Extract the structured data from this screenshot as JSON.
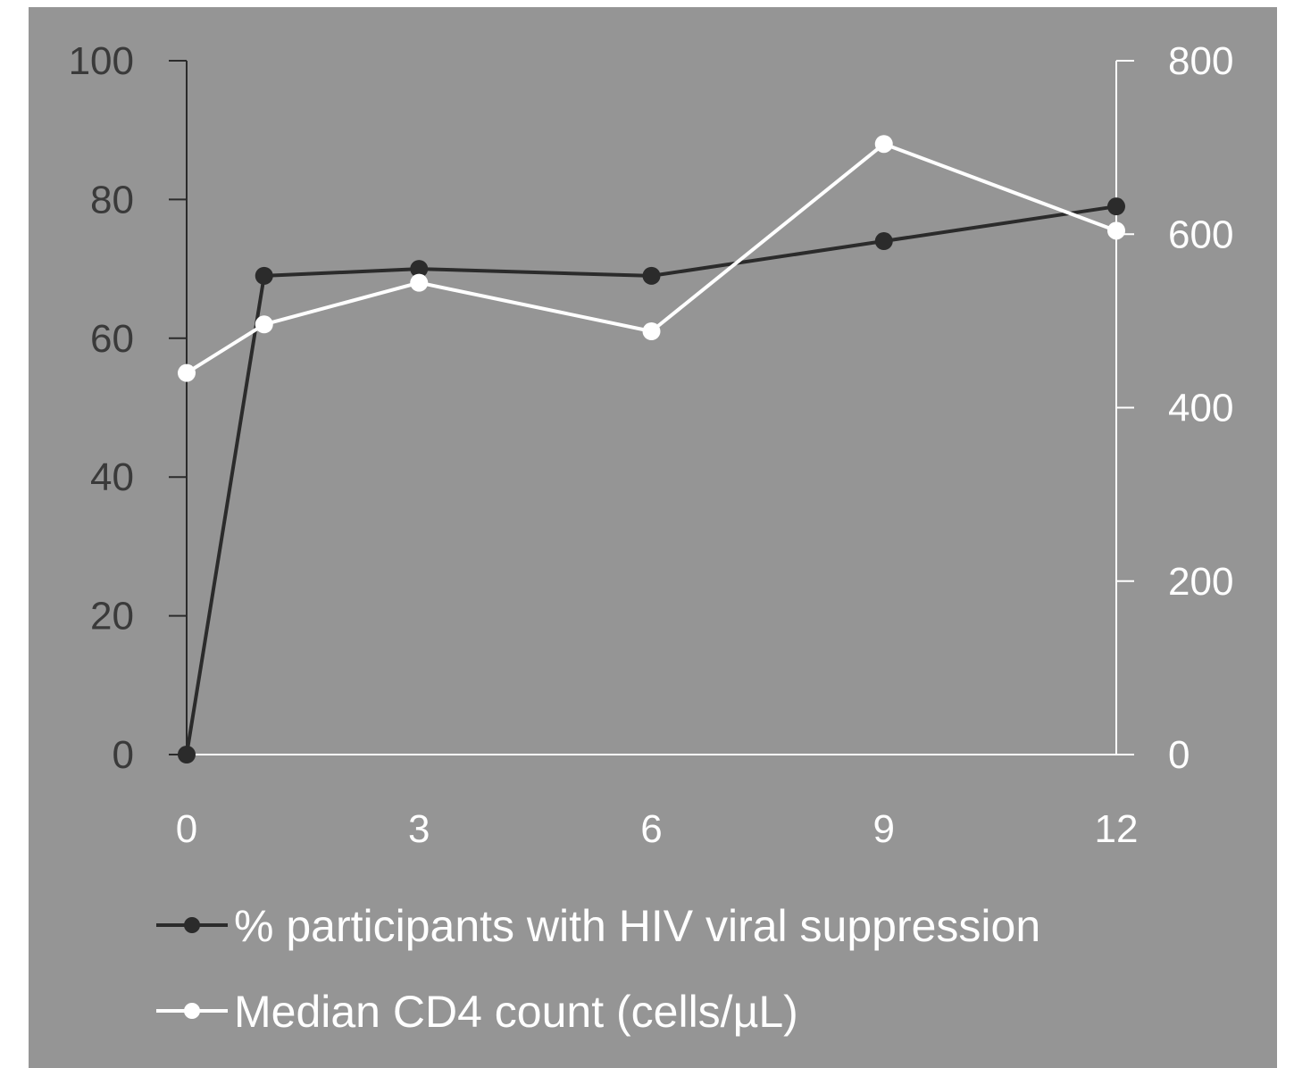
{
  "chart_data": {
    "type": "line",
    "title": "",
    "xlabel": "",
    "ylabel": "",
    "y2label": "",
    "x_ticks": [
      "0",
      "3",
      "6",
      "9",
      "12"
    ],
    "xlim": [
      0,
      12
    ],
    "ylim": [
      0,
      100
    ],
    "y2lim": [
      0,
      800
    ],
    "y_ticks": [
      "0",
      "20",
      "40",
      "60",
      "80",
      "100"
    ],
    "y2_ticks": [
      "0",
      "200",
      "400",
      "600",
      "800"
    ],
    "grid": false,
    "legend_position": "bottom",
    "series": [
      {
        "name": "% participants with HIV viral suppression",
        "axis": "left",
        "color": "#2b2b2b",
        "x": [
          0,
          1,
          3,
          6,
          9,
          12
        ],
        "values": [
          0,
          69,
          70,
          69,
          74,
          79
        ]
      },
      {
        "name": "Median CD4 count (cells/µL)",
        "axis": "right",
        "color": "#ffffff",
        "x": [
          0,
          1,
          3,
          6,
          9,
          12
        ],
        "values": [
          440,
          496,
          544,
          488,
          704,
          604
        ]
      }
    ]
  },
  "colors": {
    "background": "#959595",
    "left_axis": "#3a3a3a",
    "right_axis": "#ffffff"
  }
}
